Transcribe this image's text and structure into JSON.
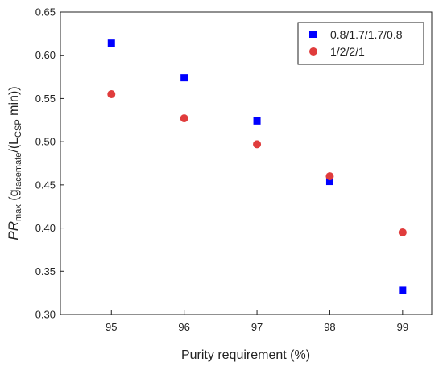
{
  "chart_data": {
    "type": "scatter",
    "xlabel": "Purity requirement (%)",
    "ylabel": {
      "parts": [
        {
          "text": "PR",
          "style": "italic"
        },
        {
          "text": "max",
          "style": "sub"
        },
        {
          "text": " (g",
          "style": "normal"
        },
        {
          "text": "racemate",
          "style": "sub"
        },
        {
          "text": "/(L",
          "style": "normal"
        },
        {
          "text": "CSP",
          "style": "sub"
        },
        {
          "text": " min))",
          "style": "normal"
        }
      ]
    },
    "xlim": [
      94.3,
      99.4
    ],
    "ylim": [
      0.3,
      0.65
    ],
    "xticks": [
      95,
      96,
      97,
      98,
      99
    ],
    "yticks": [
      0.3,
      0.35,
      0.4,
      0.45,
      0.5,
      0.55,
      0.6,
      0.65
    ],
    "grid": false,
    "legend_position": "top-right",
    "series": [
      {
        "name": "0.8/1.7/1.7/0.8",
        "marker": "square",
        "color": "#0000ff",
        "x": [
          95,
          96,
          97,
          98,
          99
        ],
        "y": [
          0.614,
          0.574,
          0.524,
          0.454,
          0.328
        ]
      },
      {
        "name": "1/2/2/1",
        "marker": "circle",
        "color": "#e03c3c",
        "x": [
          95,
          96,
          97,
          98,
          99
        ],
        "y": [
          0.555,
          0.527,
          0.497,
          0.46,
          0.395
        ]
      }
    ]
  }
}
